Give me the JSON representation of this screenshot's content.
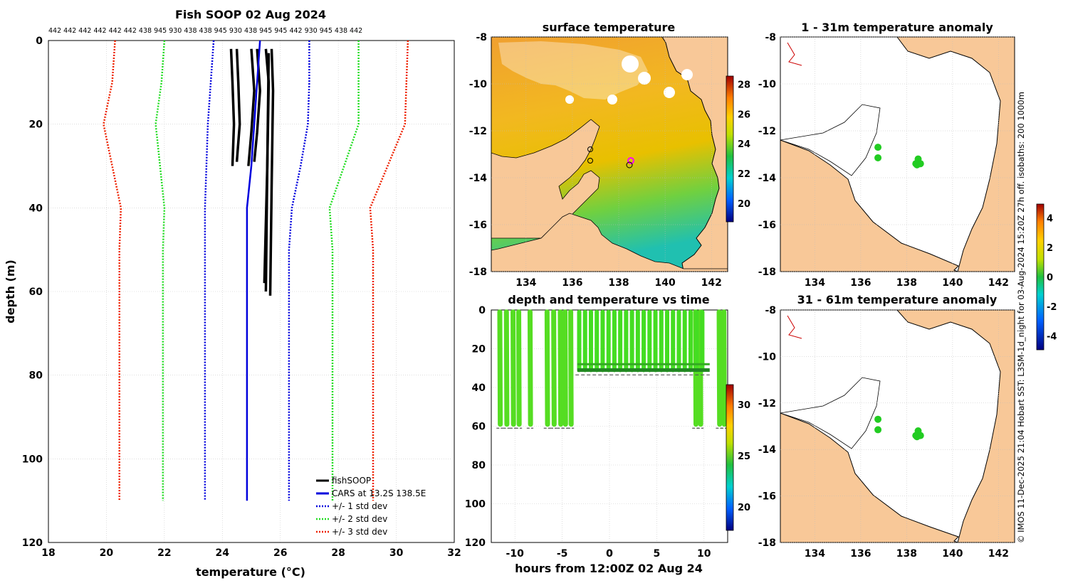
{
  "chart_data": [
    {
      "type": "line",
      "title": "Fish SOOP 02 Aug 2024",
      "xlabel": "temperature (°C)",
      "ylabel": "depth (m)",
      "xlim": [
        18,
        32
      ],
      "ylim": [
        0,
        120
      ],
      "xticks": [
        "18",
        "20",
        "22",
        "24",
        "26",
        "28",
        "30",
        "32"
      ],
      "yticks": [
        "0",
        "20",
        "40",
        "60",
        "80",
        "100",
        "120"
      ],
      "top_labels": "442 442 442 442 442 442 438 945 930 438 438 945 930 438 945 945 442 930 945 438 442",
      "legend": [
        "fishSOOP",
        "CARS at 13.2S 138.5E",
        "+/- 1 std dev",
        "+/- 2 std dev",
        "+/- 3 std dev"
      ],
      "series": [
        {
          "name": "CARS mean",
          "color": "#0000dd",
          "points": [
            [
              25.3,
              0
            ],
            [
              25.2,
              10
            ],
            [
              25.1,
              20
            ],
            [
              25.0,
              30
            ],
            [
              24.85,
              40
            ],
            [
              24.85,
              50
            ],
            [
              24.85,
              110
            ]
          ]
        },
        {
          "name": "-1 std",
          "color": "#0000dd",
          "points": [
            [
              23.7,
              0
            ],
            [
              23.6,
              10
            ],
            [
              23.5,
              20
            ],
            [
              23.45,
              30
            ],
            [
              23.4,
              40
            ],
            [
              23.4,
              50
            ],
            [
              23.4,
              110
            ]
          ]
        },
        {
          "name": "+1 std",
          "color": "#0000dd",
          "points": [
            [
              27.0,
              0
            ],
            [
              27.0,
              10
            ],
            [
              26.95,
              20
            ],
            [
              26.7,
              30
            ],
            [
              26.4,
              40
            ],
            [
              26.3,
              50
            ],
            [
              26.3,
              110
            ]
          ]
        },
        {
          "name": "-2 std",
          "color": "#22dd22",
          "points": [
            [
              22.0,
              0
            ],
            [
              21.9,
              10
            ],
            [
              21.7,
              20
            ],
            [
              21.85,
              30
            ],
            [
              22.0,
              40
            ],
            [
              21.95,
              50
            ],
            [
              21.95,
              110
            ]
          ]
        },
        {
          "name": "+2 std",
          "color": "#22dd22",
          "points": [
            [
              28.7,
              0
            ],
            [
              28.7,
              10
            ],
            [
              28.7,
              20
            ],
            [
              28.2,
              30
            ],
            [
              27.7,
              40
            ],
            [
              27.8,
              50
            ],
            [
              27.8,
              110
            ]
          ]
        },
        {
          "name": "-3 std",
          "color": "#ee2200",
          "points": [
            [
              20.3,
              0
            ],
            [
              20.2,
              10
            ],
            [
              19.9,
              20
            ],
            [
              20.2,
              30
            ],
            [
              20.5,
              40
            ],
            [
              20.45,
              50
            ],
            [
              20.45,
              110
            ]
          ]
        },
        {
          "name": "+3 std",
          "color": "#ee2200",
          "points": [
            [
              30.4,
              0
            ],
            [
              30.35,
              10
            ],
            [
              30.3,
              20
            ],
            [
              29.7,
              30
            ],
            [
              29.1,
              40
            ],
            [
              29.2,
              50
            ],
            [
              29.2,
              110
            ]
          ]
        }
      ],
      "fish_profiles": [
        [
          [
            24.3,
            2
          ],
          [
            24.35,
            10
          ],
          [
            24.4,
            20
          ],
          [
            24.35,
            30
          ]
        ],
        [
          [
            24.5,
            2
          ],
          [
            24.55,
            10
          ],
          [
            24.6,
            20
          ],
          [
            24.5,
            29
          ]
        ],
        [
          [
            25.0,
            2
          ],
          [
            25.1,
            12
          ],
          [
            25.0,
            22
          ],
          [
            24.9,
            30
          ]
        ],
        [
          [
            25.2,
            2
          ],
          [
            25.3,
            12
          ],
          [
            25.2,
            22
          ],
          [
            25.1,
            29
          ]
        ],
        [
          [
            25.5,
            2
          ],
          [
            25.6,
            10
          ],
          [
            25.55,
            30
          ],
          [
            25.5,
            60
          ]
        ],
        [
          [
            25.7,
            2
          ],
          [
            25.75,
            12
          ],
          [
            25.7,
            35
          ],
          [
            25.65,
            61
          ]
        ],
        [
          [
            25.6,
            3
          ],
          [
            25.55,
            30
          ],
          [
            25.45,
            58
          ]
        ]
      ]
    },
    {
      "type": "heatmap",
      "title": "surface temperature",
      "xticks": [
        "134",
        "136",
        "138",
        "140",
        "142"
      ],
      "yticks": [
        "-8",
        "-10",
        "-12",
        "-14",
        "-16",
        "-18"
      ],
      "colorbar_ticks": [
        "20",
        "22",
        "24",
        "26",
        "28"
      ]
    },
    {
      "type": "scatter",
      "title": "depth and temperature vs time",
      "xlabel": "hours from 12:00Z 02 Aug 24",
      "xlim": [
        -12.5,
        12.5
      ],
      "ylim": [
        0,
        120
      ],
      "xticks": [
        "-10",
        "-5",
        "0",
        "5",
        "10"
      ],
      "yticks": [
        "0",
        "20",
        "40",
        "60",
        "80",
        "100",
        "120"
      ],
      "colorbar_ticks": [
        "20",
        "25",
        "30"
      ]
    },
    {
      "type": "heatmap",
      "title": "1 - 31m temperature anomaly",
      "xticks": [
        "134",
        "136",
        "138",
        "140",
        "142"
      ],
      "yticks": [
        "-8",
        "-10",
        "-12",
        "-14",
        "-16",
        "-18"
      ]
    },
    {
      "type": "heatmap",
      "title": "31 - 61m temperature anomaly",
      "xticks": [
        "134",
        "136",
        "138",
        "140",
        "142"
      ],
      "yticks": [
        "-8",
        "-10",
        "-12",
        "-14",
        "-16",
        "-18"
      ],
      "colorbar_ticks": [
        "4",
        "2",
        "0",
        "-2",
        "-4"
      ]
    }
  ],
  "credit": "© IMOS 11-Dec-2025 21:04 Hobart SST: L3SM-1d_night for 03-Aug-2024 15:20Z 27h off. isobaths: 200  1000m",
  "colors": {
    "land": "#f8c898",
    "sea_white": "#ffffff",
    "fish_point": "#22cc22"
  }
}
